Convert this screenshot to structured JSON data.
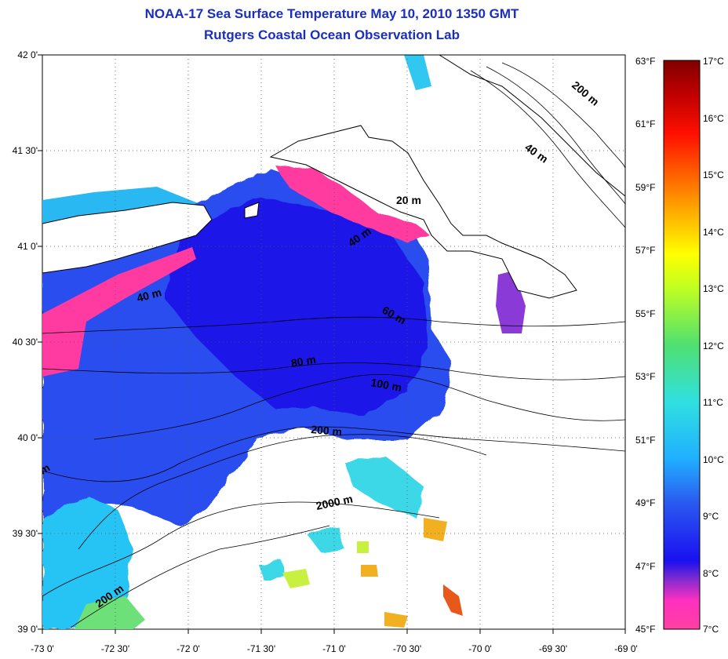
{
  "title": "NOAA-17 Sea Surface Temperature May 10, 2010 1350 GMT",
  "subtitle": "Rutgers Coastal Ocean Observation Lab",
  "lat_labels": [
    "42 0'",
    "41 30'",
    "41 0'",
    "40 30'",
    "40 0'",
    "39 30'",
    "39 0'"
  ],
  "lon_labels": [
    "-73 0'",
    "-72 30'",
    "-72 0'",
    "-71 30'",
    "-71 0'",
    "-70 30'",
    "-70 0'",
    "-69 30'",
    "-69 0'"
  ],
  "f_labels": [
    "63°F",
    "61°F",
    "59°F",
    "57°F",
    "55°F",
    "53°F",
    "51°F",
    "49°F",
    "47°F",
    "45°F"
  ],
  "c_labels": [
    "17°C",
    "16°C",
    "15°C",
    "14°C",
    "13°C",
    "12°C",
    "11°C",
    "10°C",
    "9°C",
    "8°C",
    "7°C"
  ],
  "contour_labels": [
    "200 m",
    "40 m",
    "20 m",
    "40 m",
    "40 m",
    "60 m",
    "80 m",
    "100 m",
    "200 m",
    "2000 m",
    "200 m",
    "m"
  ],
  "colors": {
    "title": "#1a2fbf",
    "colorbar_stops": [
      "#ff40a0",
      "#ff30c0",
      "#7a2ad0",
      "#1a10f0",
      "#2a58f0",
      "#20b0ff",
      "#30e0e0",
      "#50e070",
      "#c0ff20",
      "#ffff00",
      "#ffb000",
      "#ff6000",
      "#ff1000",
      "#c00000",
      "#800000"
    ]
  }
}
